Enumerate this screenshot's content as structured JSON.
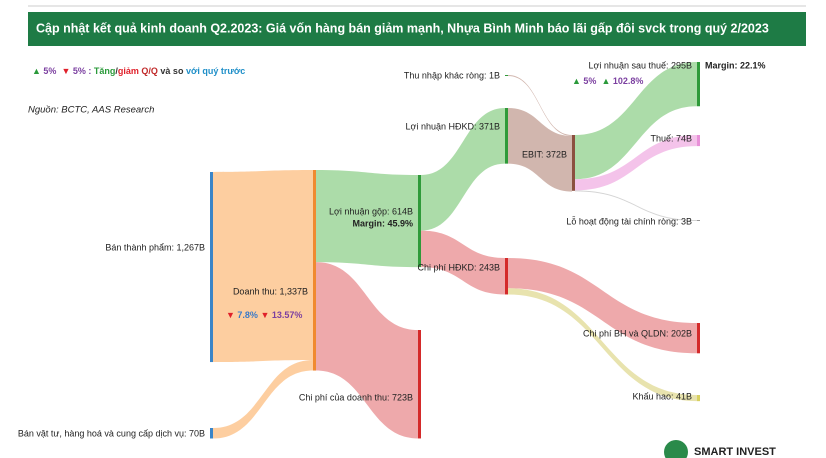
{
  "chart_data": {
    "type": "sankey",
    "title": "Cập nhật kết quả kinh doanh Q2.2023: Giá vốn hàng bán giảm mạnh, Nhựa Bình Minh báo lãi gấp đôi svck trong quý 2/2023",
    "legend_segments": [
      {
        "text": "▲",
        "color": "#2a9a3a"
      },
      {
        "text": " 5%  ",
        "color": "#7b3fa0"
      },
      {
        "text": "▼",
        "color": "#e0202a"
      },
      {
        "text": " 5% : ",
        "color": "#7b3fa0"
      },
      {
        "text": "Tăng",
        "color": "#2a9a3a"
      },
      {
        "text": "/",
        "color": "#333333"
      },
      {
        "text": "giảm",
        "color": "#e0202a"
      },
      {
        "text": " Q/Q",
        "color": "#c02a2a"
      },
      {
        "text": " và so ",
        "color": "#333333"
      },
      {
        "text": "với quý trước",
        "color": "#1f8fc8"
      }
    ],
    "source": "Nguồn: BCTC, AAS Research",
    "nodes": [
      {
        "label": "Bán thành phẩm: 1,267B",
        "value": 1267,
        "color": "#3a85c8"
      },
      {
        "label": "Bán vật tư, hàng hoá và cung cấp dịch vụ: 70B",
        "value": 70,
        "color": "#3a85c8"
      },
      {
        "label": "Doanh thu: 1,337B",
        "value": 1337,
        "color": "#f08a30"
      },
      {
        "label": "Lợi nhuận gộp: 614B",
        "value": 614,
        "color": "#2f9a3a"
      },
      {
        "label": "Chi phí của doanh thu: 723B",
        "value": 723,
        "color": "#d42a2a"
      },
      {
        "label": "Lợi nhuận HĐKD: 371B",
        "value": 371,
        "color": "#2f9a3a"
      },
      {
        "label": "Chi phí HĐKD: 243B",
        "value": 243,
        "color": "#d42a2a"
      },
      {
        "label": "Thu nhập khác ròng: 1B",
        "value": 1,
        "color": "#2f9a3a"
      },
      {
        "label": "EBIT: 372B",
        "value": 372,
        "color": "#8b5040"
      },
      {
        "label": "Lợi nhuận sau thuế: 295B",
        "value": 295,
        "color": "#2f9a3a"
      },
      {
        "label": "Thuế: 74B",
        "value": 74,
        "color": "#e890d8"
      },
      {
        "label": "Lỗ hoạt động tài chính ròng: 3B",
        "value": 3,
        "color": "#999999"
      },
      {
        "label": "Chi phí BH và QLDN: 202B",
        "value": 202,
        "color": "#d42a2a"
      },
      {
        "label": "Khấu hao: 41B",
        "value": 41,
        "color": "#d8d060"
      }
    ],
    "links": [
      {
        "source": 0,
        "target": 2,
        "value": 1267,
        "color": "#fdc68f"
      },
      {
        "source": 1,
        "target": 2,
        "value": 70,
        "color": "#fdc68f"
      },
      {
        "source": 2,
        "target": 3,
        "value": 614,
        "color": "#9ed69a"
      },
      {
        "source": 2,
        "target": 4,
        "value": 723,
        "color": "#eb9a9c"
      },
      {
        "source": 3,
        "target": 5,
        "value": 371,
        "color": "#9ed69a"
      },
      {
        "source": 3,
        "target": 6,
        "value": 243,
        "color": "#eb9a9c"
      },
      {
        "source": 7,
        "target": 8,
        "value": 1,
        "color": "#c9a9a0"
      },
      {
        "source": 5,
        "target": 8,
        "value": 371,
        "color": "#c9a9a0"
      },
      {
        "source": 8,
        "target": 9,
        "value": 295,
        "color": "#9ed69a"
      },
      {
        "source": 8,
        "target": 10,
        "value": 74,
        "color": "#f2b8e6"
      },
      {
        "source": 8,
        "target": 11,
        "value": 3,
        "color": "#cccccc"
      },
      {
        "source": 6,
        "target": 12,
        "value": 202,
        "color": "#eb9a9c"
      },
      {
        "source": 6,
        "target": 13,
        "value": 41,
        "color": "#e4dea0"
      }
    ],
    "annotations": [
      {
        "text": "Margin: 45.9%"
      },
      {
        "text": "Margin: 22.1%"
      }
    ],
    "change_labels": [
      [
        {
          "text": "▲",
          "color": "#2a9a3a"
        },
        {
          "text": " 5%  ",
          "color": "#7b3fa0"
        },
        {
          "text": "▲",
          "color": "#2a9a3a"
        },
        {
          "text": " 102.8%",
          "color": "#7b3fa0"
        }
      ],
      [
        {
          "text": "▼",
          "color": "#e0202a"
        },
        {
          "text": " 7.8% ",
          "color": "#3a7ac8"
        },
        {
          "text": "▼",
          "color": "#e0202a"
        },
        {
          "text": " 13.57%",
          "color": "#7b3fa0"
        }
      ]
    ],
    "logo_text": "SMART INVEST"
  }
}
